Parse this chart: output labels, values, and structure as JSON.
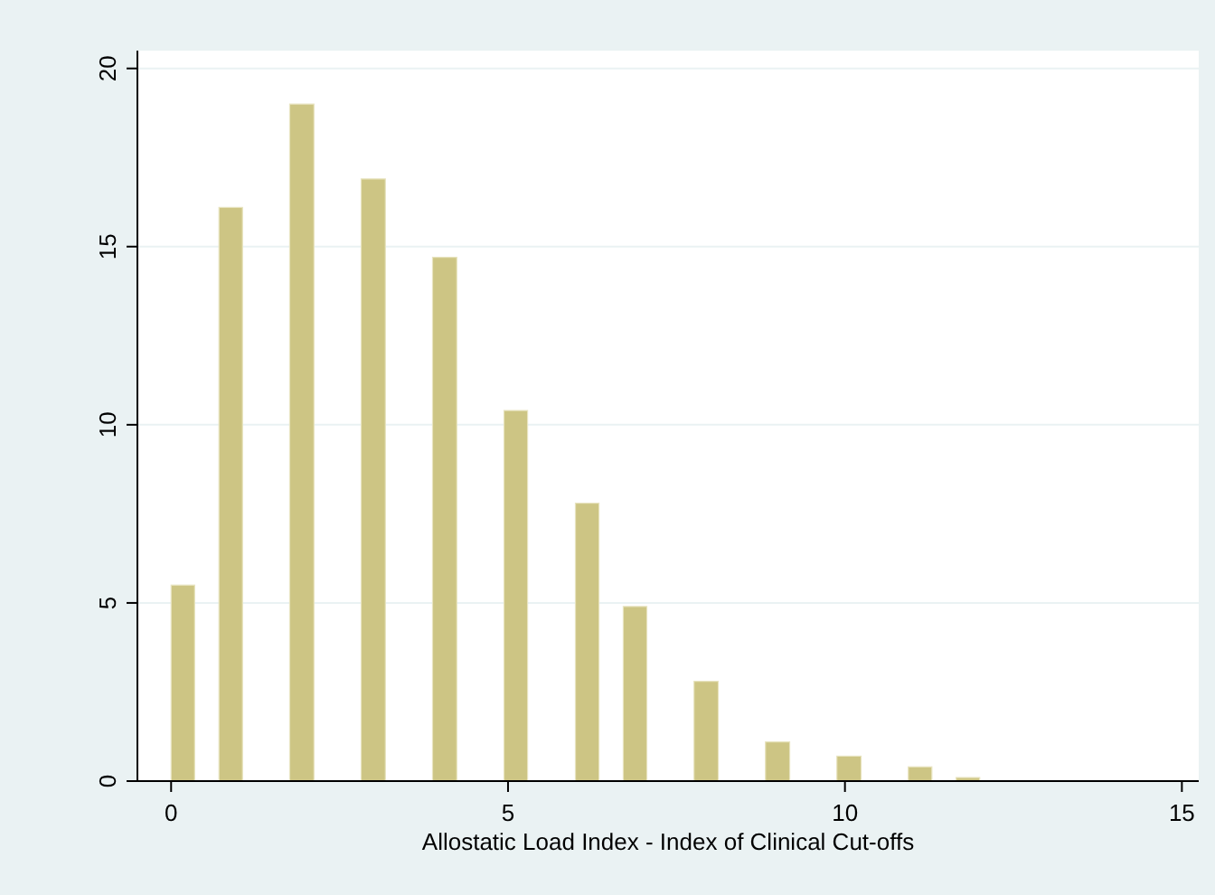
{
  "chart_data": {
    "type": "histogram",
    "xlabel": "Allostatic Load Index - Index of Clinical Cut-offs",
    "color": "#cdc584",
    "bins": [
      0,
      0.35,
      0.71,
      1.06,
      1.76,
      2.12,
      2.82,
      3.18,
      3.88,
      4.24,
      4.94,
      5.29,
      6,
      6.35,
      6.71,
      7.06,
      7.76,
      8.12,
      8.82,
      9.18,
      9.88,
      10.24,
      10.94,
      11.29,
      11.65,
      12
    ],
    "values": [
      5.5,
      0,
      16.1,
      0,
      19.0,
      0,
      16.9,
      0,
      14.7,
      0,
      10.4,
      0,
      7.8,
      0,
      4.9,
      0,
      2.8,
      0,
      1.1,
      0,
      0.7,
      0,
      0.4,
      0,
      0.1
    ],
    "xlim": [
      -0.5,
      15.25
    ],
    "xticks": [
      0,
      5,
      10,
      15
    ],
    "ylim": [
      0,
      20.5
    ],
    "yticks": [
      0,
      5,
      10,
      15,
      20
    ],
    "grid": "y"
  }
}
